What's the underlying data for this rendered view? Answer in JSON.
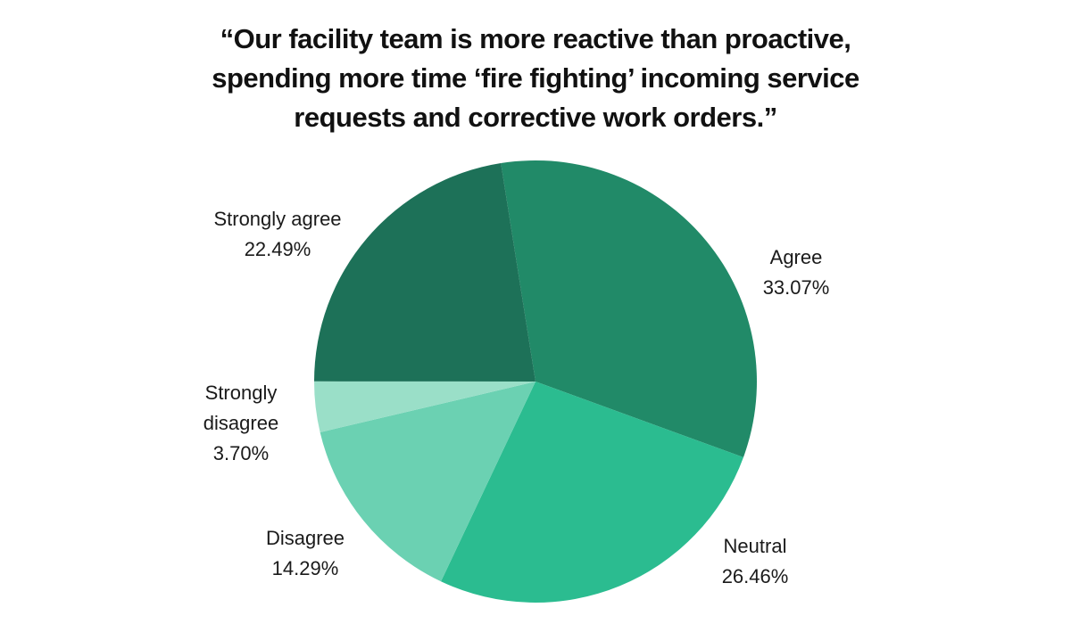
{
  "title": {
    "lines": [
      "“Our facility team is more reactive than proactive,",
      "spending more time ‘fire fighting’ incoming service",
      "requests and corrective work orders.”"
    ]
  },
  "chart_data": {
    "type": "pie",
    "title": "“Our facility team is more reactive than proactive, spending more time ‘fire fighting’ incoming service requests and corrective work orders.”",
    "categories": [
      "Agree",
      "Neutral",
      "Disagree",
      "Strongly disagree",
      "Strongly agree"
    ],
    "values": [
      33.07,
      26.46,
      14.29,
      3.7,
      22.49
    ],
    "pct_labels": [
      "33.07%",
      "26.46%",
      "14.29%",
      "3.70%",
      "22.49%"
    ],
    "colors": [
      "#218A68",
      "#2BBC90",
      "#6BD1B2",
      "#9ADFC8",
      "#1D7158"
    ],
    "start_angle_deg": -9,
    "direction": "clockwise",
    "legend_position": "none",
    "labels_outside": true,
    "background": "#FFFFFF",
    "text_color": "#1A1A1A"
  }
}
